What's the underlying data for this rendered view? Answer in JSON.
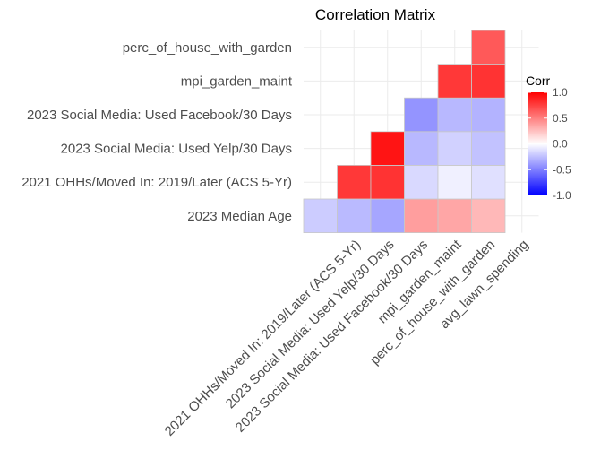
{
  "chart_data": {
    "type": "heatmap",
    "title": "Correlation Matrix",
    "legend_title": "Corr",
    "legend_ticks": [
      "1.0",
      "0.5",
      "0.0",
      "-0.5",
      "-1.0"
    ],
    "legend_range": [
      -1,
      1
    ],
    "colors": {
      "low": "#0000ff",
      "mid": "#ffffff",
      "high": "#ff0000"
    },
    "x_categories": [
      "2023 Median Age",
      "2021 OHHs/Moved In: 2019/Later (ACS 5-Yr)",
      "2023 Social Media: Used Yelp/30 Days",
      "2023 Social Media: Used Facebook/30 Days",
      "mpi_garden_maint",
      "perc_of_house_with_garden",
      "avg_lawn_spending"
    ],
    "x_tick_labels": [
      "2021 OHHs/Moved In: 2019/Later (ACS 5-Yr)",
      "2023 Social Media: Used Yelp/30 Days",
      "2023 Social Media: Used Facebook/30 Days",
      "mpi_garden_maint",
      "perc_of_house_with_garden",
      "avg_lawn_spending"
    ],
    "y_categories": [
      "2023 Median Age",
      "2021 OHHs/Moved In: 2019/Later (ACS 5-Yr)",
      "2023 Social Media: Used Yelp/30 Days",
      "2023 Social Media: Used Facebook/30 Days",
      "mpi_garden_maint",
      "perc_of_house_with_garden"
    ],
    "cells": [
      {
        "x": "2023 Median Age",
        "y": "2023 Median Age",
        "value": -0.2
      },
      {
        "x": "2021 OHHs/Moved In: 2019/Later (ACS 5-Yr)",
        "y": "2023 Median Age",
        "value": -0.27
      },
      {
        "x": "2023 Social Media: Used Yelp/30 Days",
        "y": "2023 Median Age",
        "value": -0.35
      },
      {
        "x": "2023 Social Media: Used Facebook/30 Days",
        "y": "2023 Median Age",
        "value": 0.38
      },
      {
        "x": "mpi_garden_maint",
        "y": "2023 Median Age",
        "value": 0.35
      },
      {
        "x": "perc_of_house_with_garden",
        "y": "2023 Median Age",
        "value": 0.28
      },
      {
        "x": "2021 OHHs/Moved In: 2019/Later (ACS 5-Yr)",
        "y": "2021 OHHs/Moved In: 2019/Later (ACS 5-Yr)",
        "value": 0.78
      },
      {
        "x": "2023 Social Media: Used Yelp/30 Days",
        "y": "2021 OHHs/Moved In: 2019/Later (ACS 5-Yr)",
        "value": 0.8
      },
      {
        "x": "2023 Social Media: Used Facebook/30 Days",
        "y": "2021 OHHs/Moved In: 2019/Later (ACS 5-Yr)",
        "value": -0.15
      },
      {
        "x": "mpi_garden_maint",
        "y": "2021 OHHs/Moved In: 2019/Later (ACS 5-Yr)",
        "value": -0.06
      },
      {
        "x": "perc_of_house_with_garden",
        "y": "2021 OHHs/Moved In: 2019/Later (ACS 5-Yr)",
        "value": -0.12
      },
      {
        "x": "2023 Social Media: Used Yelp/30 Days",
        "y": "2023 Social Media: Used Yelp/30 Days",
        "value": 0.92
      },
      {
        "x": "2023 Social Media: Used Facebook/30 Days",
        "y": "2023 Social Media: Used Yelp/30 Days",
        "value": -0.28
      },
      {
        "x": "mpi_garden_maint",
        "y": "2023 Social Media: Used Yelp/30 Days",
        "value": -0.18
      },
      {
        "x": "perc_of_house_with_garden",
        "y": "2023 Social Media: Used Yelp/30 Days",
        "value": -0.24
      },
      {
        "x": "2023 Social Media: Used Facebook/30 Days",
        "y": "2023 Social Media: Used Facebook/30 Days",
        "value": -0.42
      },
      {
        "x": "mpi_garden_maint",
        "y": "2023 Social Media: Used Facebook/30 Days",
        "value": -0.28
      },
      {
        "x": "perc_of_house_with_garden",
        "y": "2023 Social Media: Used Facebook/30 Days",
        "value": -0.3
      },
      {
        "x": "mpi_garden_maint",
        "y": "mpi_garden_maint",
        "value": 0.78
      },
      {
        "x": "perc_of_house_with_garden",
        "y": "mpi_garden_maint",
        "value": 0.8
      },
      {
        "x": "perc_of_house_with_garden",
        "y": "perc_of_house_with_garden",
        "value": 0.65
      }
    ]
  }
}
